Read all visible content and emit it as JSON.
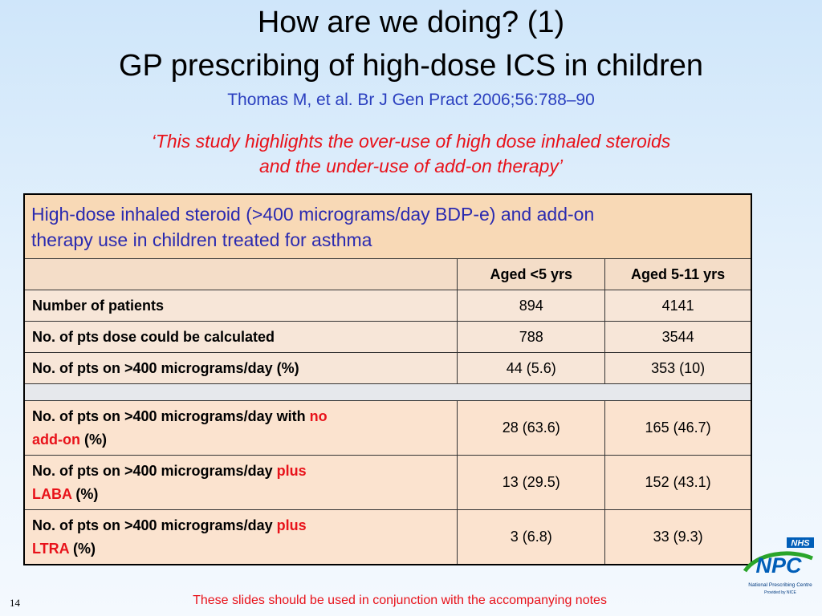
{
  "title_line1": "How are we doing? (1)",
  "title_line2": "GP prescribing of high-dose ICS in children",
  "citation": "Thomas M, et al. Br J Gen Pract 2006;56:788–90",
  "quote_line1": "‘This study highlights the over-use of high dose inhaled steroids",
  "quote_line2": "and the under-use of add-on therapy’",
  "table": {
    "caption_line1": "High-dose inhaled steroid (>400 micrograms/day BDP-e) and add-on",
    "caption_line2": "therapy use in children treated for asthma",
    "col1": "Aged <5 yrs",
    "col2": "Aged 5-11 yrs",
    "r1": {
      "label": "Number of patients",
      "v1": "894",
      "v2": "4141"
    },
    "r2": {
      "label": "No. of pts dose could be calculated",
      "v1": "788",
      "v2": "3544"
    },
    "r3": {
      "label": "No. of pts on >400 micrograms/day (%)",
      "v1": "44 (5.6)",
      "v2": "353 (10)"
    },
    "r4": {
      "pre": "No. of pts on >400 micrograms/day with ",
      "red1": "no",
      "red2": "add-on",
      "post": " (%)",
      "v1": "28 (63.6)",
      "v2": "165 (46.7)"
    },
    "r5": {
      "pre": "No. of pts on >400 micrograms/day ",
      "red1": "plus",
      "red2": "LABA",
      "post": " (%)",
      "v1": "13 (29.5)",
      "v2": "152 (43.1)"
    },
    "r6": {
      "pre": "No. of pts on >400 micrograms/day ",
      "red1": "plus",
      "red2": "LTRA",
      "post": " (%)",
      "v1": "3 (6.8)",
      "v2": "33 (9.3)"
    }
  },
  "footer_note": "These slides should be used in conjunction with the accompanying notes",
  "slide_number": "14",
  "logo": {
    "nhs": "NHS",
    "npc": "NPC",
    "line1": "National Prescribing Centre",
    "line2": "Provided by NICE",
    "colors": {
      "nhs_blue": "#005eb8",
      "npc_green": "#2aa52a"
    }
  }
}
